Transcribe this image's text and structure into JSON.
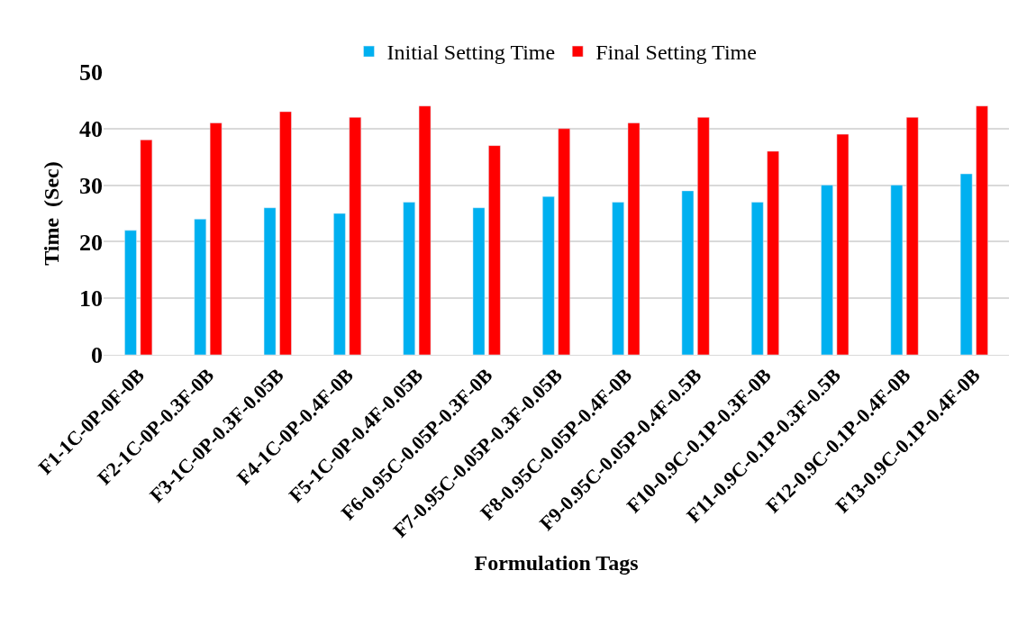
{
  "chart_data": {
    "type": "bar",
    "xlabel": "Formulation Tags",
    "ylabel": "Time  (Sec)",
    "categories": [
      "F1-1C-0P-0F-0B",
      "F2-1C-0P-0.3F-0B",
      "F3-1C-0P-0.3F-0.05B",
      "F4-1C-0P-0.4F-0B",
      "F5-1C-0P-0.4F-0.05B",
      "F6-0.95C-0.05P-0.3F-0B",
      "F7-0.95C-0.05P-0.3F-0.05B",
      "F8-0.95C-0.05P-0.4F-0B",
      "F9-0.95C-0.05P-0.4F-0.5B",
      "F10-0.9C-0.1P-0.3F-0B",
      "F11-0.9C-0.1P-0.3F-0.5B",
      "F12-0.9C-0.1P-0.4F-0B",
      "F13-0.9C-0.1P-0.4F-0B"
    ],
    "series": [
      {
        "name": "Initial Setting Time",
        "color": "#00b0f0",
        "values": [
          22,
          24,
          26,
          25,
          27,
          26,
          28,
          27,
          29,
          27,
          30,
          30,
          32
        ]
      },
      {
        "name": "Final Setting Time",
        "color": "#ff0000",
        "values": [
          38,
          41,
          43,
          42,
          44,
          37,
          40,
          41,
          42,
          36,
          39,
          42,
          44
        ]
      }
    ],
    "ylim": [
      0,
      50
    ],
    "yticks": [
      0,
      10,
      20,
      30,
      40,
      50
    ],
    "grid": "y",
    "legend": "top"
  }
}
